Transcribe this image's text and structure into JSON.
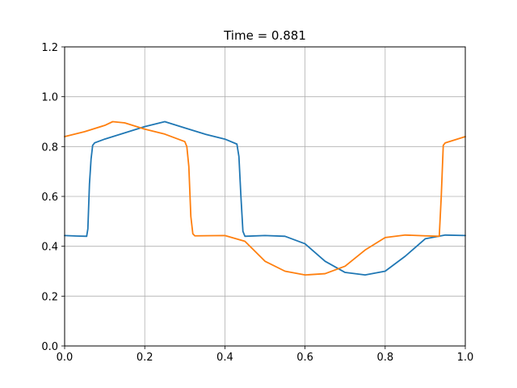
{
  "chart_data": {
    "type": "line",
    "title": "Time = 0.881",
    "xlabel": "",
    "ylabel": "",
    "xlim": [
      0,
      1
    ],
    "ylim": [
      0,
      1.2
    ],
    "xticks": [
      0,
      0.2,
      0.4,
      0.6,
      0.8,
      1
    ],
    "xtick_labels": [
      "0.0",
      "0.2",
      "0.4",
      "0.6",
      "0.8",
      "1.0"
    ],
    "yticks": [
      0,
      0.2,
      0.4,
      0.6,
      0.8,
      1.0,
      1.2
    ],
    "ytick_labels": [
      "0.0",
      "0.2",
      "0.4",
      "0.6",
      "0.8",
      "1.0",
      "1.2"
    ],
    "grid": true,
    "series": [
      {
        "color": "#1f77b4",
        "x": [
          0,
          0.03,
          0.055,
          0.058,
          0.062,
          0.066,
          0.07,
          0.075,
          0.1,
          0.15,
          0.2,
          0.25,
          0.3,
          0.35,
          0.4,
          0.43,
          0.435,
          0.44,
          0.445,
          0.45,
          0.5,
          0.55,
          0.6,
          0.65,
          0.7,
          0.75,
          0.8,
          0.85,
          0.9,
          0.95,
          1.0
        ],
        "y": [
          0.443,
          0.441,
          0.44,
          0.47,
          0.65,
          0.75,
          0.805,
          0.815,
          0.83,
          0.855,
          0.88,
          0.9,
          0.875,
          0.85,
          0.83,
          0.81,
          0.76,
          0.6,
          0.46,
          0.44,
          0.443,
          0.44,
          0.41,
          0.34,
          0.295,
          0.285,
          0.3,
          0.36,
          0.43,
          0.445,
          0.443
        ]
      },
      {
        "color": "#ff7f0e",
        "x": [
          0,
          0.05,
          0.1,
          0.12,
          0.15,
          0.2,
          0.25,
          0.3,
          0.305,
          0.31,
          0.315,
          0.32,
          0.325,
          0.33,
          0.4,
          0.45,
          0.5,
          0.55,
          0.6,
          0.65,
          0.7,
          0.75,
          0.8,
          0.85,
          0.9,
          0.935,
          0.94,
          0.945,
          0.95,
          1.0
        ],
        "y": [
          0.84,
          0.86,
          0.885,
          0.9,
          0.895,
          0.87,
          0.85,
          0.82,
          0.8,
          0.72,
          0.52,
          0.45,
          0.442,
          0.442,
          0.443,
          0.42,
          0.34,
          0.3,
          0.285,
          0.29,
          0.32,
          0.385,
          0.435,
          0.445,
          0.442,
          0.44,
          0.6,
          0.805,
          0.815,
          0.84
        ]
      }
    ]
  }
}
